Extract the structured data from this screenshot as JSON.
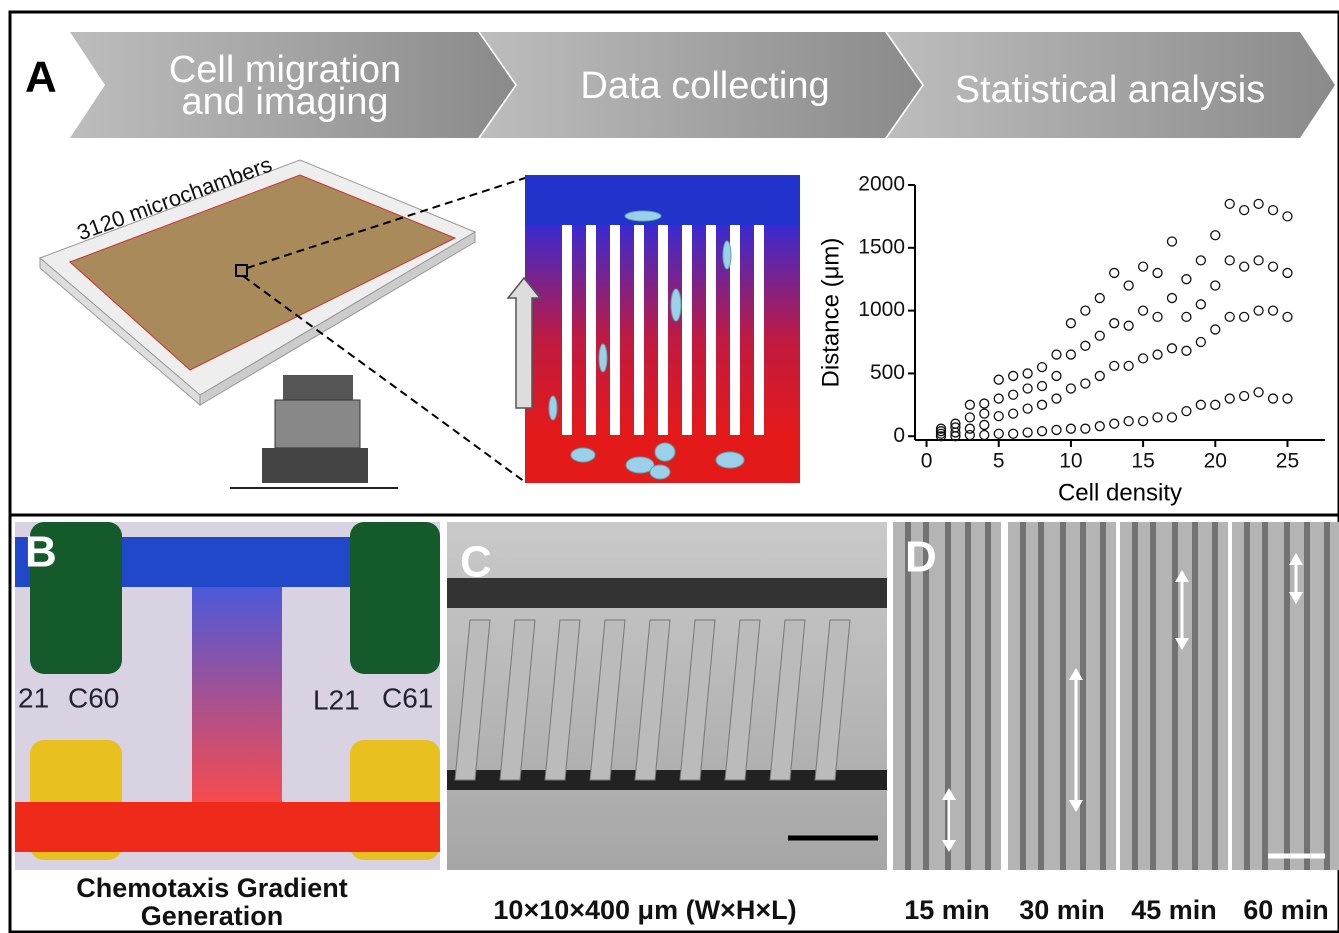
{
  "panel_a": {
    "label": "A",
    "steps": [
      [
        "Cell migration",
        "and imaging"
      ],
      [
        "Data collecting"
      ],
      [
        "Statistical analysis"
      ]
    ],
    "device_label": "3120 microchambers"
  },
  "chart_data": {
    "type": "scatter",
    "x_label": "Cell density",
    "y_label": "Distance (μm)",
    "xlim": [
      -0.8,
      27.6
    ],
    "ylim": [
      -30,
      2000
    ],
    "xticks": [
      0,
      5,
      10,
      15,
      20,
      25
    ],
    "yticks": [
      0,
      500,
      1000,
      1500,
      2000
    ],
    "marker": "open-circle",
    "x": [
      1,
      1,
      1,
      1,
      2,
      2,
      2,
      2,
      3,
      3,
      3,
      3,
      4,
      4,
      4,
      4,
      5,
      5,
      5,
      5,
      6,
      6,
      6,
      6,
      7,
      7,
      7,
      7,
      8,
      8,
      8,
      8,
      9,
      9,
      9,
      9,
      10,
      10,
      10,
      10,
      11,
      11,
      11,
      11,
      12,
      12,
      12,
      12,
      13,
      13,
      13,
      13,
      14,
      14,
      14,
      14,
      15,
      15,
      15,
      15,
      16,
      16,
      16,
      16,
      17,
      17,
      17,
      17,
      18,
      18,
      18,
      18,
      19,
      19,
      19,
      19,
      20,
      20,
      20,
      20,
      21,
      21,
      21,
      21,
      22,
      22,
      22,
      22,
      23,
      23,
      23,
      23,
      24,
      24,
      24,
      24,
      25,
      25,
      25,
      25
    ],
    "values": [
      60,
      40,
      20,
      0,
      100,
      70,
      30,
      0,
      250,
      150,
      60,
      10,
      260,
      180,
      90,
      10,
      450,
      300,
      160,
      20,
      480,
      330,
      180,
      20,
      500,
      380,
      220,
      30,
      550,
      400,
      250,
      40,
      650,
      480,
      300,
      50,
      900,
      650,
      380,
      60,
      1000,
      720,
      420,
      60,
      1100,
      800,
      480,
      80,
      1300,
      900,
      560,
      100,
      1200,
      880,
      560,
      120,
      1350,
      1000,
      620,
      120,
      1300,
      950,
      650,
      150,
      1550,
      1100,
      700,
      150,
      1250,
      950,
      680,
      200,
      1400,
      1050,
      750,
      250,
      1600,
      1200,
      850,
      250,
      1850,
      1400,
      950,
      300,
      1800,
      1350,
      950,
      320,
      1850,
      1400,
      1000,
      350,
      1800,
      1350,
      1000,
      300,
      1750,
      1300,
      950,
      300
    ]
  },
  "panel_b": {
    "label": "B",
    "chip_labels": [
      "21",
      "C60",
      "L21",
      "C61"
    ],
    "caption": [
      "Chemotaxis Gradient",
      "Generation"
    ]
  },
  "panel_c": {
    "label": "C",
    "caption": "10×10×400 μm (W×H×L)"
  },
  "panel_d": {
    "label": "D",
    "times": [
      "15 min",
      "30 min",
      "45 min",
      "60 min"
    ]
  }
}
